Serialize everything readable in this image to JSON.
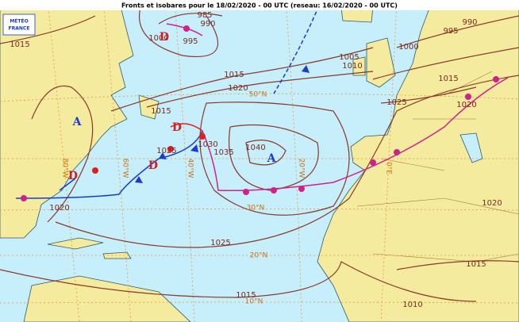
{
  "title": "Fronts et isobares pour le 18/02/2020 - 00 UTC (reseau: 16/02/2020 - 00 UTC)",
  "logo": {
    "line1": "MÉTÉO",
    "line2": "FRANCE"
  },
  "isobar_labels": [
    1015,
    985,
    990,
    1000,
    995,
    1015,
    1020,
    1025,
    1015,
    1030,
    1035,
    1040,
    1020,
    1025,
    1015,
    1005,
    1010,
    1000,
    995,
    990,
    1015,
    1025,
    1020,
    1020,
    1015,
    1010
  ],
  "centers": [
    "A",
    "D",
    "D",
    "D",
    "D",
    "A"
  ],
  "latitude_labels": [
    "50°N",
    "30°N",
    "20°N",
    "10°N"
  ],
  "longitude_labels": [
    "80°W",
    "60°W",
    "40°W",
    "20°W",
    "0°E"
  ]
}
